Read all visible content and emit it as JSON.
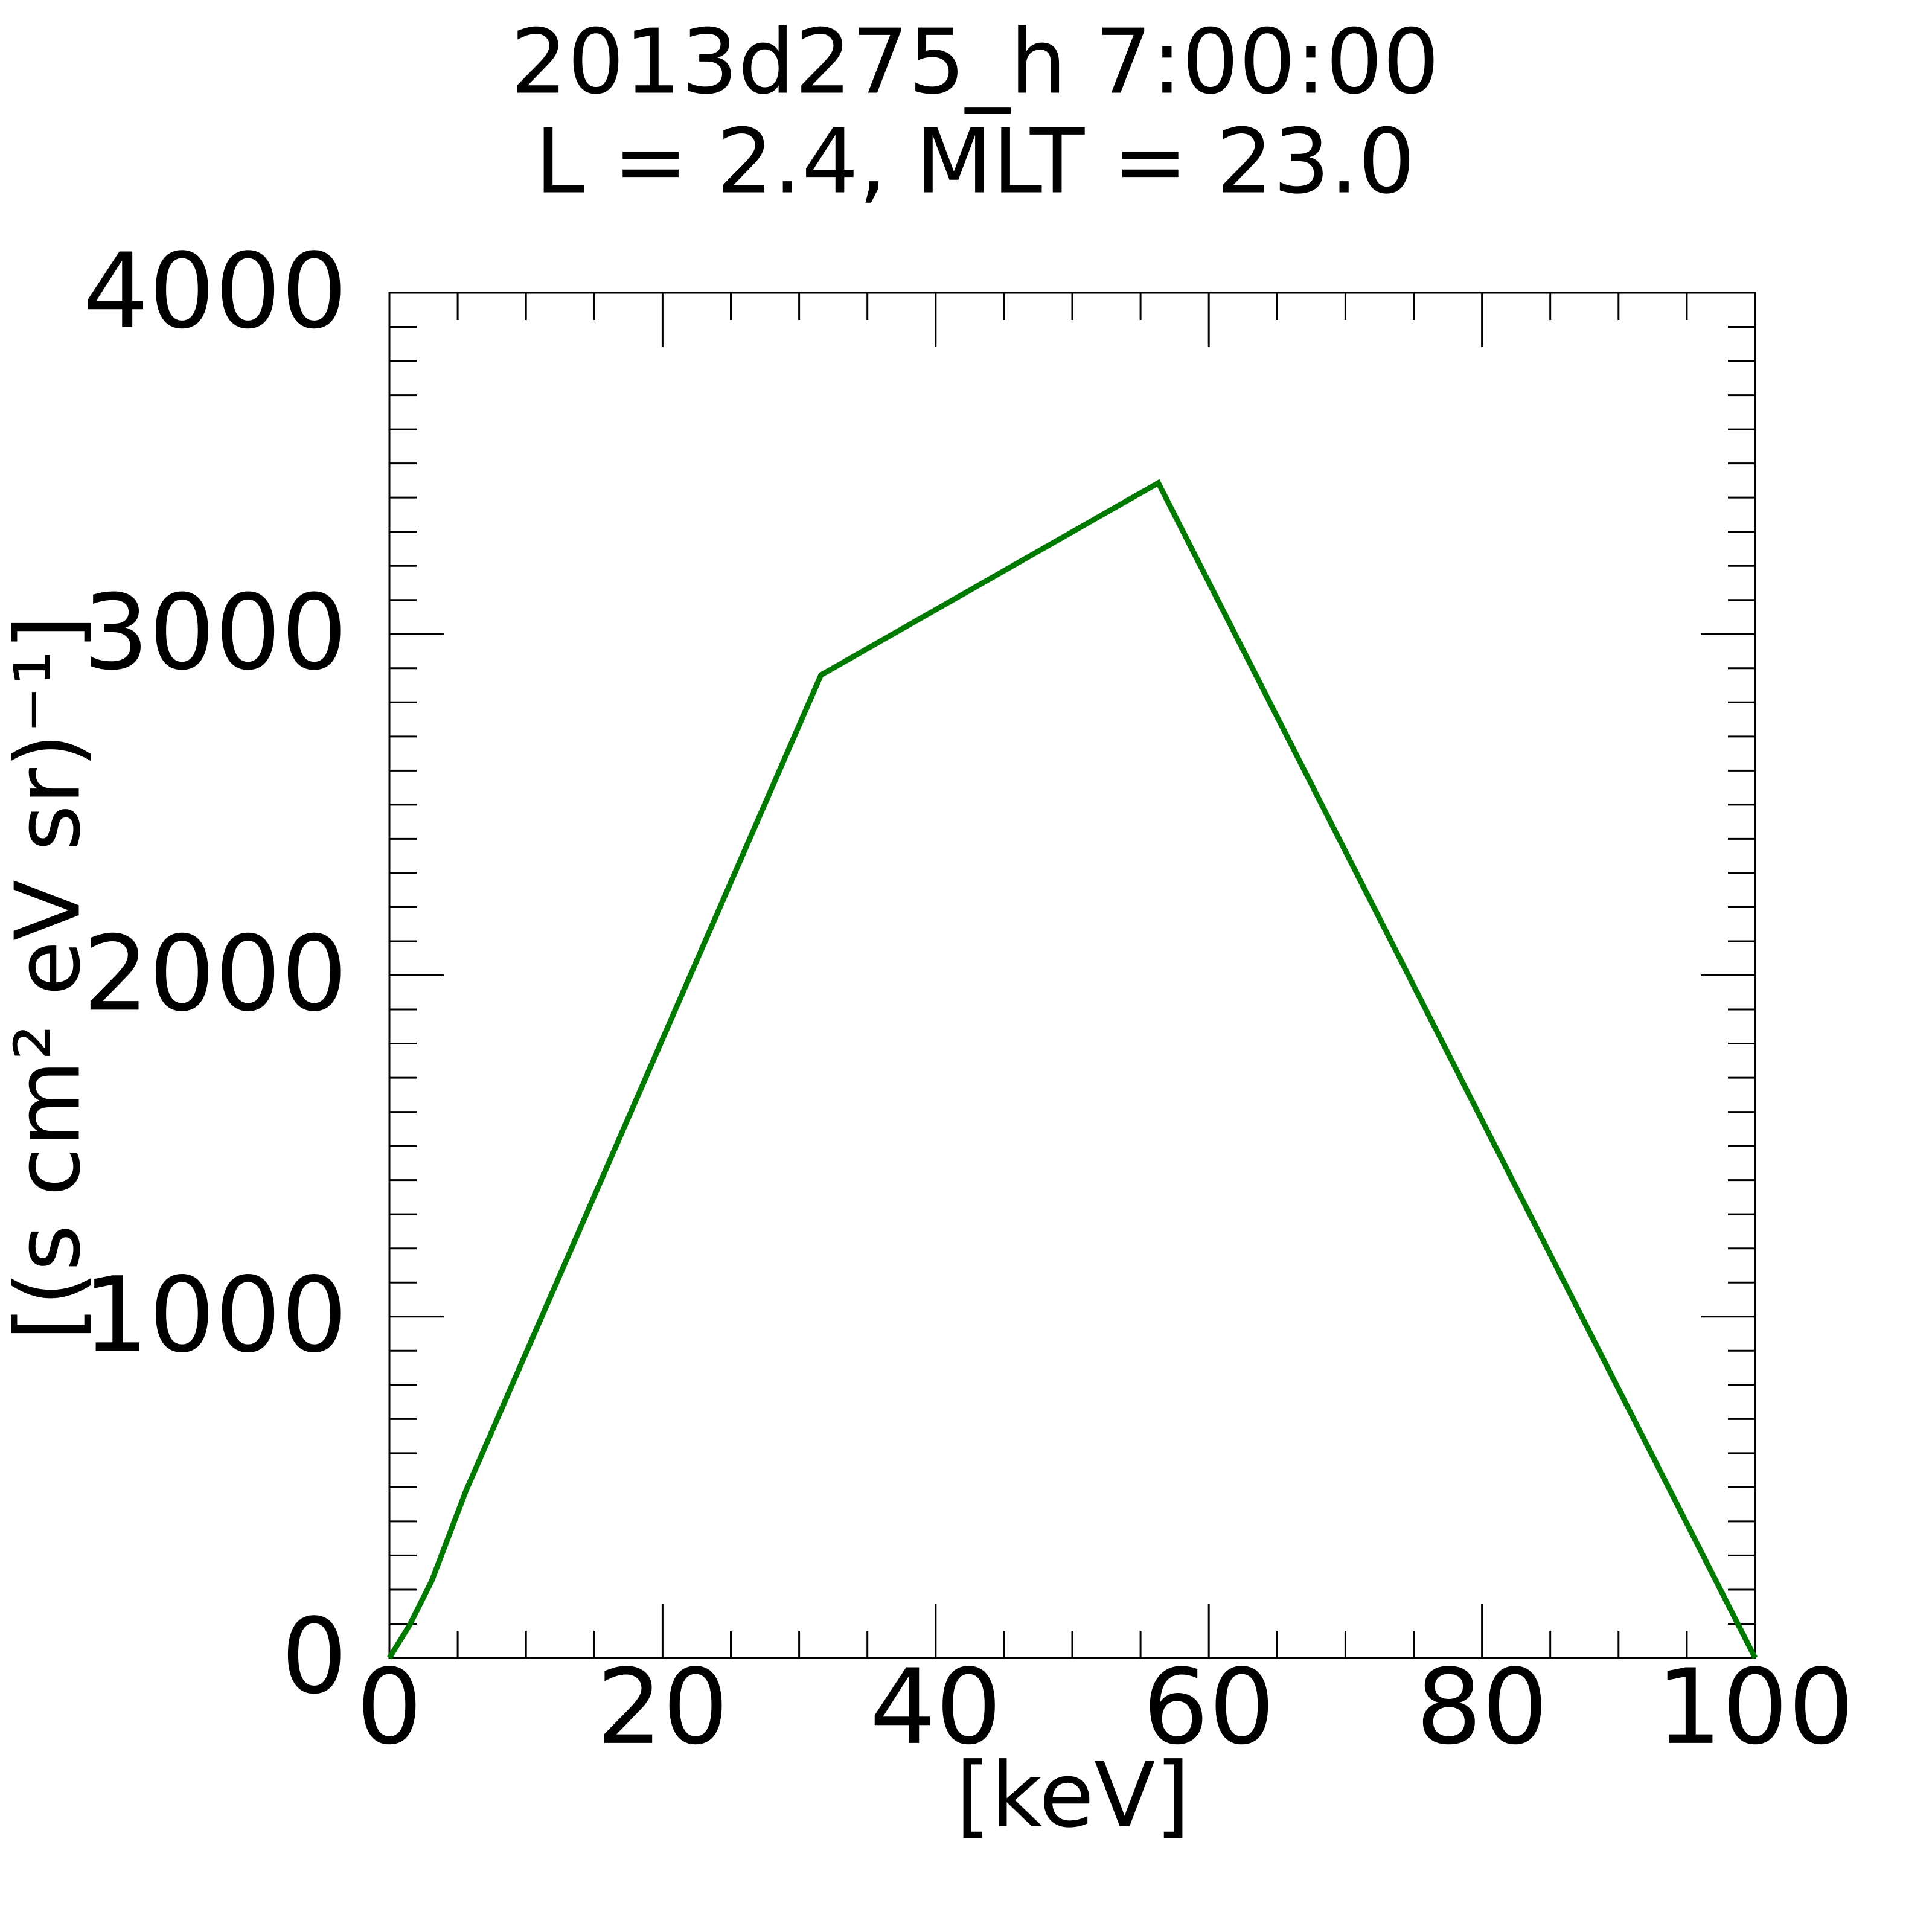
{
  "chart_data": {
    "type": "line",
    "title": "2013d275_h   7:00:00",
    "subtitle": "L = 2.4, MLT = 23.0",
    "xlabel": "[keV]",
    "ylabel": "[(s cm² eV sr)⁻¹]",
    "series": [
      {
        "color": "#007a00",
        "x": [
          0,
          1.5,
          3.1,
          5.6,
          31.6,
          56.3,
          100
        ],
        "values": [
          0,
          98,
          226,
          489,
          2880,
          3443,
          0
        ]
      }
    ],
    "xlim": [
      0,
      100
    ],
    "xticks": [
      0,
      20,
      40,
      60,
      80,
      100
    ],
    "xminorticks": [
      5,
      10,
      15,
      25,
      30,
      35,
      45,
      50,
      55,
      65,
      70,
      75,
      85,
      90,
      95
    ],
    "ylim": [
      0,
      4000
    ],
    "yticks": [
      0,
      1000,
      2000,
      3000,
      4000
    ],
    "yminorticks": [
      100,
      200,
      300,
      400,
      500,
      600,
      700,
      800,
      900,
      1100,
      1200,
      1300,
      1400,
      1500,
      1600,
      1700,
      1800,
      1900,
      2100,
      2200,
      2300,
      2400,
      2500,
      2600,
      2700,
      2800,
      2900,
      3100,
      3200,
      3300,
      3400,
      3500,
      3600,
      3700,
      3800,
      3900
    ]
  }
}
